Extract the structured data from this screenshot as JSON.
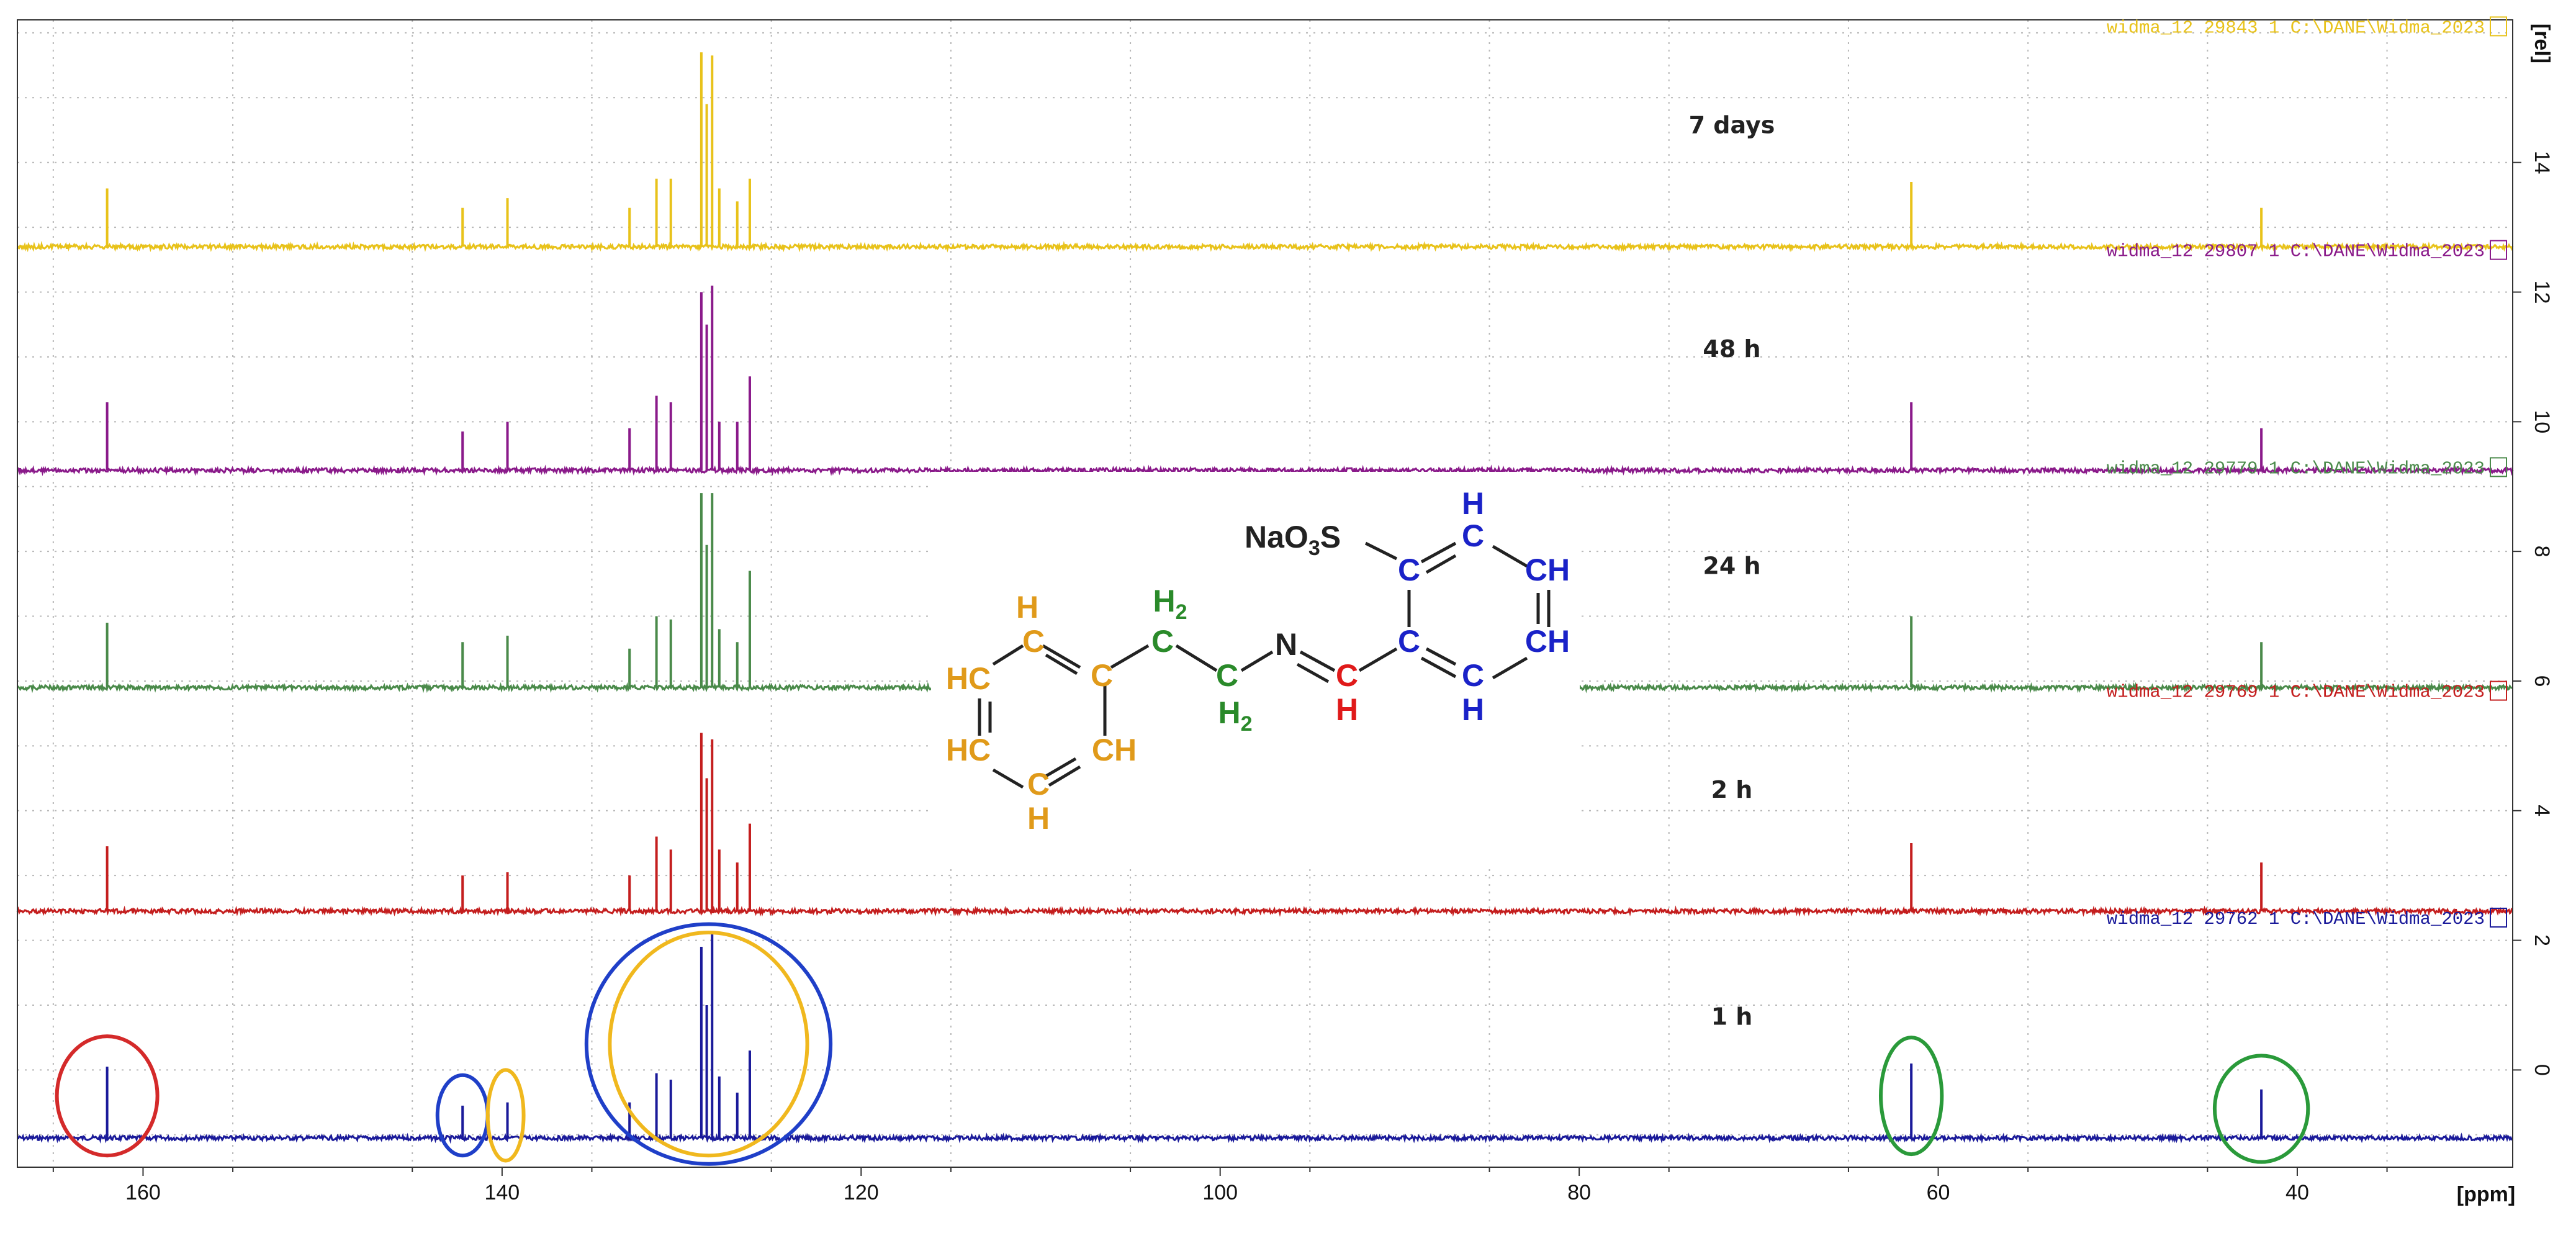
{
  "chart_data": {
    "type": "line",
    "xlabel": "[ppm]",
    "ylabel": "[rel]",
    "xlim": [
      167,
      28
    ],
    "ylim": [
      -1.5,
      16.2
    ],
    "x_ticks": [
      160,
      140,
      120,
      100,
      80,
      60,
      40
    ],
    "y_ticks": [
      0,
      2,
      4,
      6,
      8,
      10,
      12,
      14
    ],
    "grid": true,
    "series": [
      {
        "name": "1 h",
        "dataset_label": "widma_12   29762   1   C:\\DANE\\Widma_2023",
        "color": "#1a1a9a",
        "baseline": -1.05,
        "peaks": [
          {
            "ppm": 162.0,
            "height": 0.05
          },
          {
            "ppm": 142.2,
            "height": -0.55
          },
          {
            "ppm": 139.7,
            "height": -0.5
          },
          {
            "ppm": 132.9,
            "height": -0.5
          },
          {
            "ppm": 131.4,
            "height": -0.05
          },
          {
            "ppm": 130.6,
            "height": -0.15
          },
          {
            "ppm": 128.9,
            "height": 1.9
          },
          {
            "ppm": 128.6,
            "height": 1.0
          },
          {
            "ppm": 128.3,
            "height": 2.1
          },
          {
            "ppm": 127.9,
            "height": -0.1
          },
          {
            "ppm": 126.9,
            "height": -0.35
          },
          {
            "ppm": 126.2,
            "height": 0.3
          },
          {
            "ppm": 61.5,
            "height": 0.1
          },
          {
            "ppm": 42.0,
            "height": -0.3
          }
        ]
      },
      {
        "name": "2 h",
        "dataset_label": "widma_12   29769   1   C:\\DANE\\Widma_2023",
        "color": "#c41e1e",
        "baseline": 2.45,
        "peaks": [
          {
            "ppm": 162.0,
            "height": 3.45
          },
          {
            "ppm": 142.2,
            "height": 3.0
          },
          {
            "ppm": 139.7,
            "height": 3.05
          },
          {
            "ppm": 132.9,
            "height": 3.0
          },
          {
            "ppm": 131.4,
            "height": 3.6
          },
          {
            "ppm": 130.6,
            "height": 3.4
          },
          {
            "ppm": 128.9,
            "height": 5.2
          },
          {
            "ppm": 128.6,
            "height": 4.5
          },
          {
            "ppm": 128.3,
            "height": 5.1
          },
          {
            "ppm": 127.9,
            "height": 3.4
          },
          {
            "ppm": 126.9,
            "height": 3.2
          },
          {
            "ppm": 126.2,
            "height": 3.8
          },
          {
            "ppm": 61.5,
            "height": 3.5
          },
          {
            "ppm": 42.0,
            "height": 3.2
          }
        ]
      },
      {
        "name": "24 h",
        "dataset_label": "widma_12   29779   1   C:\\DANE\\Widma_2023",
        "color": "#4a8a4a",
        "baseline": 5.9,
        "peaks": [
          {
            "ppm": 162.0,
            "height": 6.9
          },
          {
            "ppm": 142.2,
            "height": 6.6
          },
          {
            "ppm": 139.7,
            "height": 6.7
          },
          {
            "ppm": 132.9,
            "height": 6.5
          },
          {
            "ppm": 131.4,
            "height": 7.0
          },
          {
            "ppm": 130.6,
            "height": 6.95
          },
          {
            "ppm": 128.9,
            "height": 8.9
          },
          {
            "ppm": 128.6,
            "height": 8.1
          },
          {
            "ppm": 128.3,
            "height": 8.9
          },
          {
            "ppm": 127.9,
            "height": 6.8
          },
          {
            "ppm": 126.9,
            "height": 6.6
          },
          {
            "ppm": 126.2,
            "height": 7.7
          },
          {
            "ppm": 61.5,
            "height": 7.0
          },
          {
            "ppm": 42.0,
            "height": 6.6
          }
        ]
      },
      {
        "name": "48 h",
        "dataset_label": "widma_12   29807   1   C:\\DANE\\Widma_2023",
        "color": "#8a1a8a",
        "baseline": 9.25,
        "peaks": [
          {
            "ppm": 162.0,
            "height": 10.3
          },
          {
            "ppm": 142.2,
            "height": 9.85
          },
          {
            "ppm": 139.7,
            "height": 10.0
          },
          {
            "ppm": 132.9,
            "height": 9.9
          },
          {
            "ppm": 131.4,
            "height": 10.4
          },
          {
            "ppm": 130.6,
            "height": 10.3
          },
          {
            "ppm": 128.9,
            "height": 12.0
          },
          {
            "ppm": 128.6,
            "height": 11.5
          },
          {
            "ppm": 128.3,
            "height": 12.1
          },
          {
            "ppm": 127.9,
            "height": 10.0
          },
          {
            "ppm": 126.9,
            "height": 10.0
          },
          {
            "ppm": 126.2,
            "height": 10.7
          },
          {
            "ppm": 61.5,
            "height": 10.3
          },
          {
            "ppm": 42.0,
            "height": 9.9
          }
        ]
      },
      {
        "name": "7 days",
        "dataset_label": "widma_12   29843   1   C:\\DANE\\Widma_2023",
        "color": "#e8c21a",
        "baseline": 12.7,
        "peaks": [
          {
            "ppm": 162.0,
            "height": 13.6
          },
          {
            "ppm": 142.2,
            "height": 13.3
          },
          {
            "ppm": 139.7,
            "height": 13.45
          },
          {
            "ppm": 132.9,
            "height": 13.3
          },
          {
            "ppm": 131.4,
            "height": 13.75
          },
          {
            "ppm": 130.6,
            "height": 13.75
          },
          {
            "ppm": 128.9,
            "height": 15.7
          },
          {
            "ppm": 128.6,
            "height": 14.9
          },
          {
            "ppm": 128.3,
            "height": 15.65
          },
          {
            "ppm": 127.9,
            "height": 13.6
          },
          {
            "ppm": 126.9,
            "height": 13.4
          },
          {
            "ppm": 126.2,
            "height": 13.75
          },
          {
            "ppm": 61.5,
            "height": 13.7
          },
          {
            "ppm": 42.0,
            "height": 13.3
          }
        ]
      }
    ],
    "annotations": [
      {
        "shape": "ellipse",
        "color": "#d42a2a",
        "ppm": 162.0,
        "y": -0.4,
        "ppm_halfwidth": 2.8,
        "y_halfheight": 0.92
      },
      {
        "shape": "ellipse",
        "color": "#1f3fc8",
        "ppm": 142.2,
        "y": -0.7,
        "ppm_halfwidth": 1.4,
        "y_halfheight": 0.62
      },
      {
        "shape": "ellipse",
        "color": "#f0b81e",
        "ppm": 139.8,
        "y": -0.7,
        "ppm_halfwidth": 1.0,
        "y_halfheight": 0.7
      },
      {
        "shape": "ellipse",
        "color": "#1f3fc8",
        "ppm": 128.5,
        "y": 0.4,
        "ppm_halfwidth": 6.8,
        "y_halfheight": 1.85
      },
      {
        "shape": "ellipse",
        "color": "#f0b81e",
        "ppm": 128.5,
        "y": 0.4,
        "ppm_halfwidth": 5.5,
        "y_halfheight": 1.72
      },
      {
        "shape": "ellipse",
        "color": "#2a9a3a",
        "ppm": 61.5,
        "y": -0.4,
        "ppm_halfwidth": 1.7,
        "y_halfheight": 0.9
      },
      {
        "shape": "ellipse",
        "color": "#2a9a3a",
        "ppm": 42.0,
        "y": -0.6,
        "ppm_halfwidth": 2.6,
        "y_halfheight": 0.82
      }
    ]
  },
  "structure": {
    "sulfonate": "NaO3S",
    "atoms": {
      "ring1_top_H": "H",
      "ring1_top_C": "C",
      "ring1_ipso_C": "C",
      "ring1_HC_upper": "HC",
      "ring1_HC_lower": "HC",
      "ring1_CH": "CH",
      "ring1_bottom_C": "C",
      "ring1_bottom_H": "H",
      "ch2_a": "H2",
      "ch2_a_C": "C",
      "ch2_b_C": "C",
      "ch2_b": "H2",
      "imine_N": "N",
      "imine_C": "C",
      "imine_H": "H",
      "ring2_ipso_C": "C",
      "ring2_sulfo_C": "C",
      "ring2_top_C": "C",
      "ring2_top_H": "H",
      "ring2_CH_upper": "CH",
      "ring2_CH_lower": "CH",
      "ring2_bottom_C": "C",
      "ring2_bottom_H": "H"
    },
    "colors": {
      "phenyl": "#e09a1a",
      "ethylene": "#2a8a2a",
      "imine": "#e01a1a",
      "sulfophenyl": "#1a22c8",
      "bond": "#222222"
    }
  }
}
